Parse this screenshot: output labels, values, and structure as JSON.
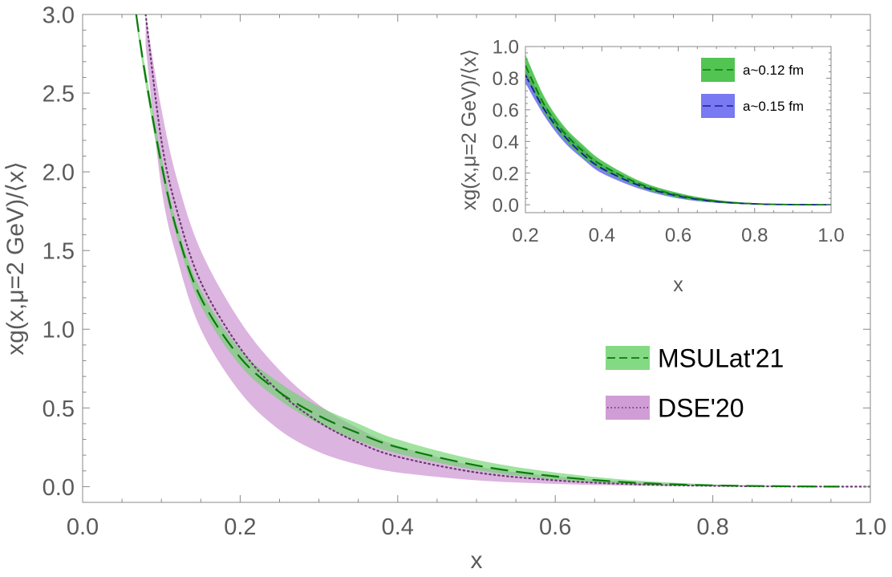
{
  "chart_data": [
    {
      "id": "main",
      "type": "area",
      "xlabel": "x",
      "ylabel": "xg(x,μ=2 GeV)/⟨x⟩",
      "xlim": [
        0.0,
        1.0
      ],
      "ylim": [
        -0.1,
        3.0
      ],
      "xticks": [
        "0.0",
        "0.2",
        "0.4",
        "0.6",
        "0.8",
        "1.0"
      ],
      "yticks": [
        "0.0",
        "0.5",
        "1.0",
        "1.5",
        "2.0",
        "2.5",
        "3.0"
      ],
      "legend_position": "right",
      "series": [
        {
          "name": "DSE'20",
          "line_style": "dotted",
          "line_color": "#6b3a70",
          "band_color": "#c98ccf",
          "x": [
            0.08,
            0.1,
            0.12,
            0.15,
            0.2,
            0.25,
            0.3,
            0.35,
            0.4,
            0.5,
            0.6,
            0.7,
            0.8,
            0.9,
            1.0
          ],
          "y": [
            3.0,
            2.2,
            1.75,
            1.3,
            0.88,
            0.6,
            0.41,
            0.28,
            0.19,
            0.09,
            0.04,
            0.015,
            0.005,
            0.001,
            0.0
          ],
          "lower": [
            2.8,
            1.9,
            1.45,
            1.0,
            0.6,
            0.36,
            0.22,
            0.14,
            0.09,
            0.04,
            0.017,
            0.006,
            0.002,
            0.0005,
            0.0
          ],
          "upper": [
            3.0,
            2.4,
            1.95,
            1.5,
            1.05,
            0.74,
            0.52,
            0.37,
            0.26,
            0.13,
            0.065,
            0.03,
            0.012,
            0.004,
            0.0
          ]
        },
        {
          "name": "MSULat'21",
          "line_style": "dashed",
          "line_color": "#0a7a0a",
          "band_color": "#6fd36f",
          "x": [
            0.068,
            0.08,
            0.1,
            0.12,
            0.15,
            0.2,
            0.25,
            0.3,
            0.35,
            0.4,
            0.5,
            0.6,
            0.7,
            0.8,
            0.9,
            0.96
          ],
          "y": [
            3.0,
            2.6,
            2.05,
            1.62,
            1.2,
            0.82,
            0.6,
            0.45,
            0.34,
            0.25,
            0.135,
            0.065,
            0.025,
            0.008,
            0.002,
            0.0
          ],
          "lower": [
            2.95,
            2.55,
            2.0,
            1.58,
            1.15,
            0.77,
            0.55,
            0.4,
            0.29,
            0.21,
            0.105,
            0.045,
            0.015,
            0.004,
            0.001,
            0.0
          ],
          "upper": [
            3.0,
            2.65,
            2.1,
            1.66,
            1.25,
            0.87,
            0.66,
            0.51,
            0.4,
            0.3,
            0.17,
            0.09,
            0.04,
            0.014,
            0.004,
            0.0
          ]
        }
      ]
    },
    {
      "id": "inset",
      "type": "area",
      "xlabel": "x",
      "ylabel": "xg(x,μ=2 GeV)/⟨x⟩",
      "xlim": [
        0.2,
        1.0
      ],
      "ylim": [
        -0.05,
        1.0
      ],
      "xticks": [
        "0.2",
        "0.4",
        "0.6",
        "0.8",
        "1.0"
      ],
      "yticks": [
        "0.0",
        "0.2",
        "0.4",
        "0.6",
        "0.8",
        "1.0"
      ],
      "legend_position": "top-right",
      "series": [
        {
          "name": "a~0.15 fm",
          "line_style": "dashed",
          "line_color": "#1a1aa0",
          "band_color": "#6a6af0",
          "x": [
            0.2,
            0.25,
            0.3,
            0.35,
            0.4,
            0.5,
            0.6,
            0.7,
            0.8,
            0.9,
            1.0
          ],
          "y": [
            0.82,
            0.6,
            0.44,
            0.32,
            0.23,
            0.12,
            0.055,
            0.02,
            0.005,
            0.001,
            0.0
          ],
          "lower": [
            0.77,
            0.56,
            0.4,
            0.29,
            0.2,
            0.1,
            0.04,
            0.012,
            0.002,
            0.0,
            0.0
          ],
          "upper": [
            0.86,
            0.64,
            0.48,
            0.36,
            0.26,
            0.14,
            0.07,
            0.03,
            0.01,
            0.003,
            0.0
          ]
        },
        {
          "name": "a~0.12 fm",
          "line_style": "dashed",
          "line_color": "#0a7a0a",
          "band_color": "#3fbe3f",
          "x": [
            0.2,
            0.25,
            0.3,
            0.35,
            0.4,
            0.5,
            0.6,
            0.7,
            0.8,
            0.9,
            1.0
          ],
          "y": [
            0.88,
            0.63,
            0.46,
            0.34,
            0.25,
            0.13,
            0.06,
            0.022,
            0.006,
            0.001,
            0.0
          ],
          "lower": [
            0.82,
            0.58,
            0.42,
            0.3,
            0.22,
            0.11,
            0.045,
            0.015,
            0.003,
            0.0,
            0.0
          ],
          "upper": [
            0.95,
            0.68,
            0.5,
            0.38,
            0.28,
            0.15,
            0.075,
            0.03,
            0.01,
            0.002,
            0.0
          ]
        }
      ]
    }
  ]
}
